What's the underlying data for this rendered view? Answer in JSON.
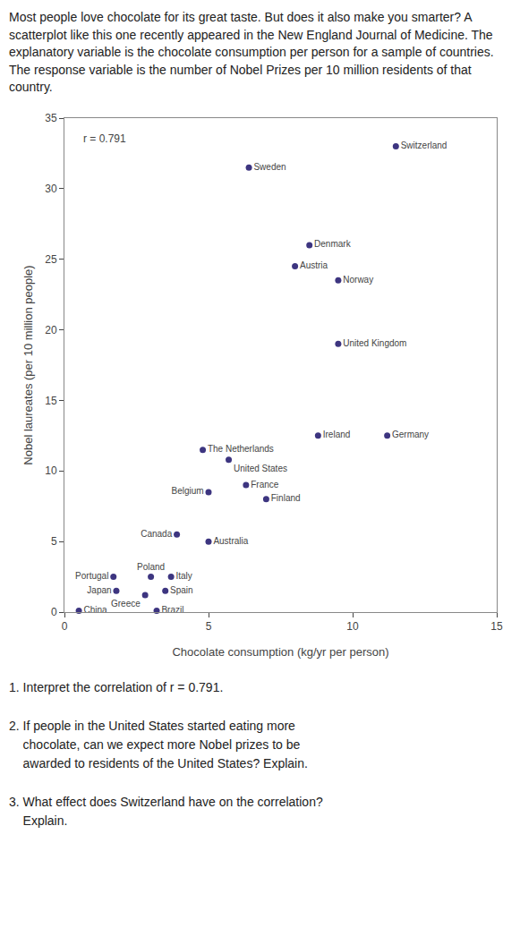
{
  "chart_data": {
    "type": "scatter",
    "subtitle": "Most people love chocolate for its great taste. But does it also make you smarter? A scatterplot like this one recently appeared in the New England Journal of Medicine. The explanatory variable is the chocolate consumption per person for a sample of countries. The response variable is the number of Nobel Prizes per 10 million residents of that country.",
    "labels": [
      "Switzerland",
      "Sweden",
      "Denmark",
      "Austria",
      "Norway",
      "United Kingdom",
      "Ireland",
      "Germany",
      "The Netherlands",
      "United States",
      "France",
      "Finland",
      "Belgium",
      "Canada",
      "Australia",
      "Portugal",
      "Poland",
      "Italy",
      "Spain",
      "Japan",
      "Greece",
      "China",
      "Brazil"
    ],
    "x": [
      11.5,
      6.4,
      8.5,
      8.0,
      9.5,
      9.5,
      8.8,
      11.2,
      4.8,
      5.7,
      6.3,
      7.0,
      5.0,
      3.9,
      5.0,
      1.7,
      3.0,
      3.7,
      3.5,
      1.8,
      2.8,
      0.5,
      3.2
    ],
    "values": [
      33,
      31.5,
      26,
      24.5,
      23.5,
      19,
      12.5,
      12.5,
      11.5,
      10.8,
      9.0,
      8.0,
      8.5,
      5.5,
      5.0,
      2.5,
      2.5,
      2.5,
      1.5,
      1.5,
      1.2,
      0.1,
      0.1
    ],
    "color": "#3d3580",
    "marker": "circle",
    "xlabel": "Chocolate consumption (kg/yr per person)",
    "ylabel": "Nobel laureates (per 10 million people)",
    "xlim": [
      0,
      15
    ],
    "ylim": [
      0,
      35
    ],
    "xticks": [
      0,
      5,
      10,
      15
    ],
    "yticks": [
      0,
      5,
      10,
      15,
      20,
      25,
      30,
      35
    ],
    "grid": false,
    "annotations": [
      "r = 0.791",
      "1. Interpret the correlation of r = 0.791.",
      "2. If people in the United States started eating more\n    chocolate, can we expect more Nobel prizes to be\n    awarded to residents of the United States? Explain.",
      "3. What effect does Switzerland have on the correlation?\n    Explain."
    ]
  }
}
